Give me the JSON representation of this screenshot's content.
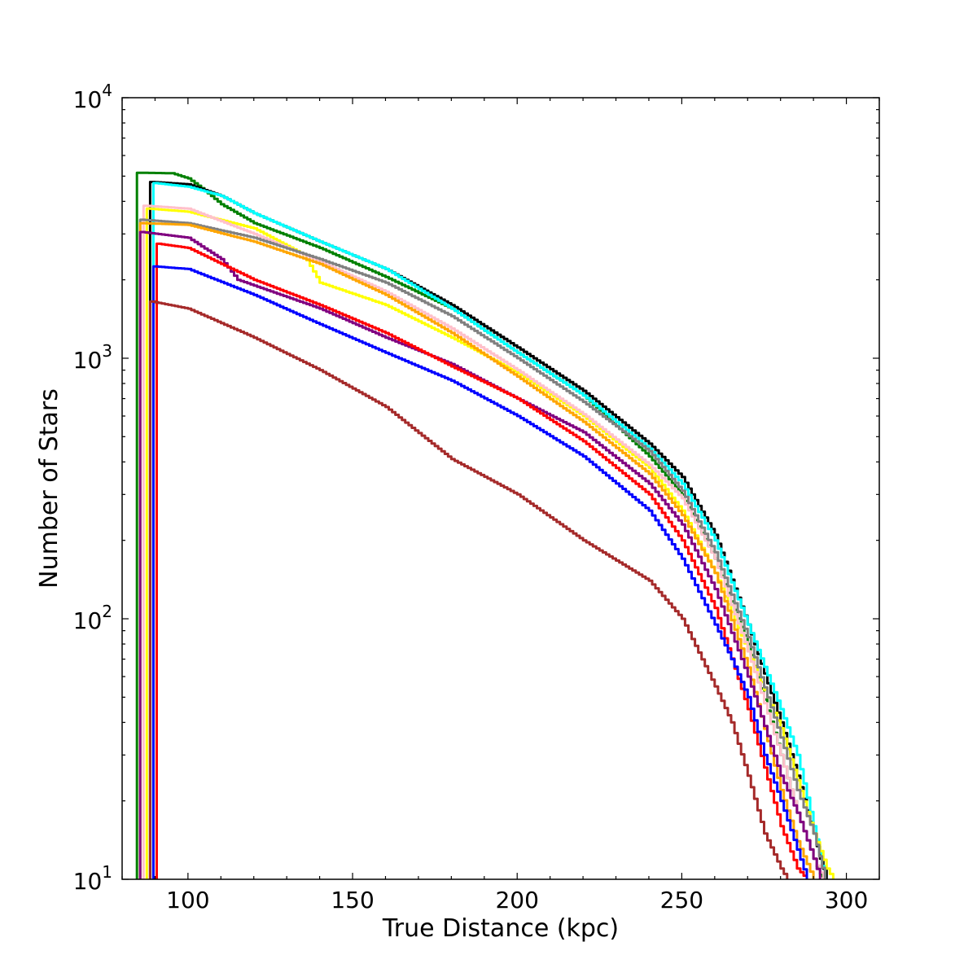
{
  "chart_data": {
    "type": "line",
    "title": "",
    "xlabel": "True Distance (kpc)",
    "ylabel": "Number of Stars",
    "xlim": [
      80,
      310
    ],
    "ylim": [
      10,
      10000
    ],
    "yscale": "log",
    "grid": false,
    "x_ticks": [
      {
        "value": 100,
        "label": "100"
      },
      {
        "value": 150,
        "label": "150"
      },
      {
        "value": 200,
        "label": "200"
      },
      {
        "value": 250,
        "label": "250"
      },
      {
        "value": 300,
        "label": "300"
      }
    ],
    "y_ticks": [
      {
        "value": 10,
        "base": "10",
        "exp": "1"
      },
      {
        "value": 100,
        "base": "10",
        "exp": "2"
      },
      {
        "value": 1000,
        "base": "10",
        "exp": "3"
      },
      {
        "value": 10000,
        "base": "10",
        "exp": "4"
      }
    ],
    "series": [
      {
        "color": "#008000",
        "x": [
          84.5,
          84.5,
          85,
          95,
          100,
          105,
          110,
          120,
          140,
          160,
          180,
          200,
          220,
          240,
          250,
          260,
          270,
          280,
          285,
          290,
          292,
          293.5
        ],
        "y": [
          10,
          5150,
          5150,
          5130,
          4900,
          4400,
          3900,
          3300,
          2650,
          2050,
          1550,
          1050,
          720,
          420,
          300,
          170,
          80,
          30,
          18,
          12,
          10.5,
          10
        ]
      },
      {
        "color": "#000000",
        "x": [
          88.5,
          88.5,
          89,
          100,
          110,
          120,
          140,
          160,
          180,
          200,
          220,
          240,
          250,
          260,
          270,
          280,
          285,
          290,
          292,
          294
        ],
        "y": [
          10,
          4750,
          4750,
          4650,
          4200,
          3600,
          2800,
          2200,
          1600,
          1100,
          750,
          470,
          350,
          210,
          95,
          40,
          25,
          15,
          12,
          10
        ]
      },
      {
        "color": "#00ffff",
        "x": [
          89.5,
          89.5,
          90,
          100,
          110,
          120,
          140,
          160,
          180,
          200,
          220,
          240,
          250,
          260,
          270,
          280,
          285,
          290,
          293.5
        ],
        "y": [
          10,
          4700,
          4700,
          4550,
          4200,
          3600,
          2800,
          2200,
          1550,
          1050,
          720,
          450,
          330,
          200,
          95,
          45,
          30,
          16,
          10
        ]
      },
      {
        "color": "#ffff00",
        "x": [
          87.5,
          87.5,
          88,
          100,
          120,
          135,
          140,
          160,
          180,
          200,
          220,
          240,
          250,
          260,
          270,
          280,
          285,
          290,
          294,
          296
        ],
        "y": [
          10,
          3750,
          3750,
          3650,
          3150,
          2500,
          1950,
          1600,
          1200,
          880,
          600,
          380,
          260,
          150,
          75,
          38,
          24,
          15,
          11,
          10
        ]
      },
      {
        "color": "#ffc0cb",
        "x": [
          86.5,
          86.5,
          87,
          100,
          120,
          140,
          160,
          180,
          200,
          220,
          240,
          250,
          260,
          270,
          280,
          285,
          290,
          293
        ],
        "y": [
          10,
          3850,
          3850,
          3750,
          3000,
          2350,
          1800,
          1300,
          900,
          610,
          390,
          290,
          170,
          75,
          30,
          18,
          12,
          10
        ]
      },
      {
        "color": "#808080",
        "x": [
          85.5,
          85.5,
          86,
          100,
          120,
          140,
          160,
          180,
          200,
          220,
          240,
          250,
          260,
          270,
          280,
          285,
          290,
          293.5
        ],
        "y": [
          10,
          3400,
          3400,
          3300,
          2900,
          2400,
          1950,
          1450,
          1000,
          680,
          440,
          310,
          180,
          85,
          35,
          22,
          15,
          10
        ]
      },
      {
        "color": "#ffa500",
        "x": [
          85.5,
          85.5,
          86,
          100,
          120,
          140,
          160,
          180,
          200,
          220,
          240,
          250,
          260,
          270,
          280,
          285,
          290
        ],
        "y": [
          10,
          3300,
          3300,
          3250,
          2800,
          2300,
          1750,
          1250,
          850,
          570,
          360,
          250,
          150,
          65,
          22,
          14,
          10
        ]
      },
      {
        "color": "#800080",
        "x": [
          85.5,
          85.5,
          86,
          100,
          110,
          115,
          120,
          140,
          160,
          180,
          200,
          220,
          240,
          250,
          260,
          270,
          280,
          285,
          290,
          292
        ],
        "y": [
          10,
          3050,
          3050,
          2900,
          2400,
          2000,
          1900,
          1550,
          1200,
          950,
          700,
          520,
          330,
          230,
          130,
          60,
          25,
          18,
          12,
          10
        ]
      },
      {
        "color": "#ff0000",
        "x": [
          90.5,
          90.5,
          91,
          100,
          120,
          140,
          160,
          180,
          200,
          220,
          240,
          250,
          260,
          270,
          280,
          285,
          288
        ],
        "y": [
          10,
          2750,
          2750,
          2650,
          2000,
          1600,
          1250,
          930,
          700,
          480,
          300,
          200,
          110,
          45,
          16,
          11,
          10
        ]
      },
      {
        "color": "#0000ff",
        "x": [
          89.5,
          89.5,
          90,
          100,
          120,
          140,
          160,
          180,
          200,
          220,
          240,
          250,
          260,
          265,
          270,
          275,
          280,
          285,
          288
        ],
        "y": [
          10,
          2250,
          2250,
          2200,
          1750,
          1350,
          1050,
          820,
          600,
          420,
          260,
          170,
          95,
          70,
          50,
          30,
          20,
          13,
          10
        ]
      },
      {
        "color": "#a52a2a",
        "x": [
          88.5,
          88.5,
          89,
          100,
          120,
          140,
          160,
          180,
          200,
          220,
          240,
          250,
          260,
          265,
          270,
          275,
          280,
          282
        ],
        "y": [
          10,
          1650,
          1650,
          1550,
          1200,
          900,
          650,
          410,
          300,
          200,
          140,
          100,
          55,
          40,
          25,
          15,
          11,
          10
        ]
      }
    ]
  }
}
